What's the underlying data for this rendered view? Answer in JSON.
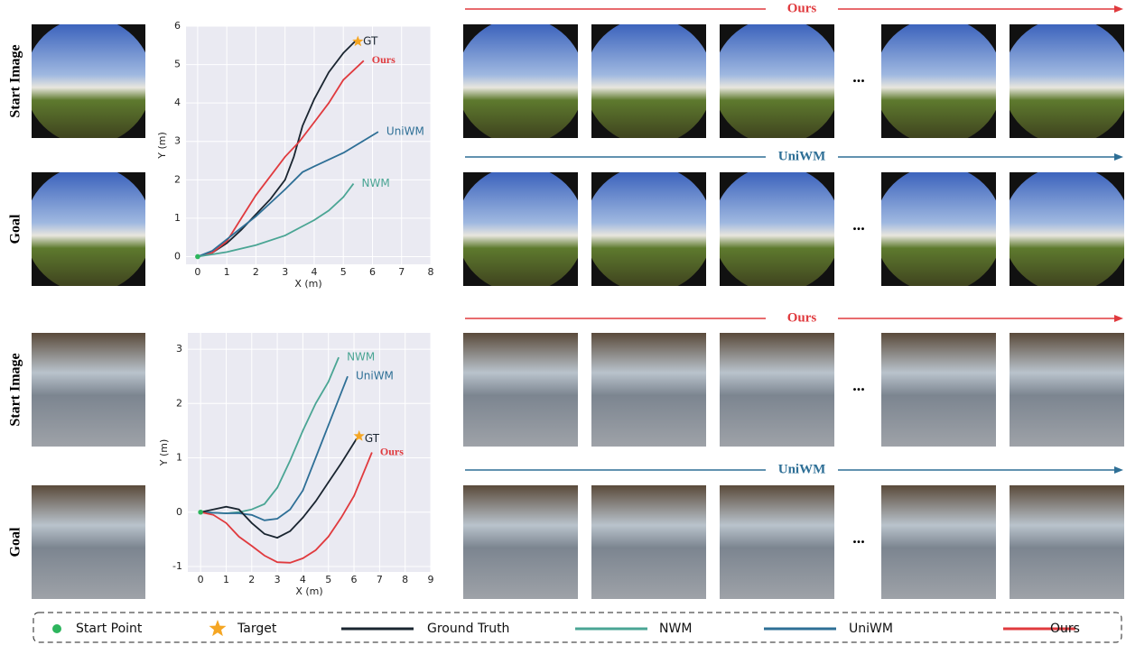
{
  "row_labels": [
    "Start Image",
    "Goal",
    "Start Image",
    "Goal"
  ],
  "sequence_labels": [
    {
      "text": "Ours",
      "color": "#e03a3e"
    },
    {
      "text": "UniWM",
      "color": "#2e6f96"
    },
    {
      "text": "Ours",
      "color": "#e03a3e"
    },
    {
      "text": "UniWM",
      "color": "#2e6f96"
    }
  ],
  "ellipsis": "...",
  "chart_data": [
    {
      "type": "line",
      "xlabel": "X (m)",
      "ylabel": "Y (m)",
      "xlim": [
        -0.4,
        8
      ],
      "ylim": [
        -0.2,
        6
      ],
      "xticks": [
        0,
        1,
        2,
        3,
        4,
        5,
        6,
        7,
        8
      ],
      "yticks": [
        0,
        1,
        2,
        3,
        4,
        5,
        6
      ],
      "grid": true,
      "start": {
        "x": 0,
        "y": 0,
        "color": "#2db55d"
      },
      "target": {
        "x": 5.5,
        "y": 5.6,
        "color": "#f5a623"
      },
      "series": [
        {
          "name": "GT",
          "color": "#1a2530",
          "x": [
            0,
            0.5,
            1,
            1.5,
            2,
            2.5,
            3,
            3.3,
            3.6,
            4,
            4.5,
            5,
            5.4
          ],
          "values": [
            0,
            0.1,
            0.35,
            0.7,
            1.1,
            1.5,
            2.0,
            2.6,
            3.4,
            4.1,
            4.8,
            5.3,
            5.6
          ]
        },
        {
          "name": "Ours",
          "color": "#e03a3e",
          "x": [
            0,
            0.5,
            1,
            1.5,
            2,
            2.5,
            3,
            3.5,
            4,
            4.5,
            5,
            5.7
          ],
          "values": [
            0,
            0.1,
            0.4,
            1.0,
            1.6,
            2.1,
            2.6,
            3.0,
            3.5,
            4.0,
            4.6,
            5.1
          ]
        },
        {
          "name": "UniWM",
          "color": "#2e6f96",
          "x": [
            0,
            0.5,
            1,
            1.5,
            2,
            2.5,
            3,
            3.6,
            4,
            5,
            6.2
          ],
          "values": [
            0,
            0.15,
            0.45,
            0.75,
            1.05,
            1.4,
            1.75,
            2.2,
            2.35,
            2.7,
            3.25
          ]
        },
        {
          "name": "NWM",
          "color": "#4aa594",
          "x": [
            0,
            1,
            2,
            3,
            3.5,
            4,
            4.5,
            5,
            5.35
          ],
          "values": [
            0,
            0.12,
            0.3,
            0.55,
            0.75,
            0.95,
            1.2,
            1.55,
            1.9
          ]
        }
      ]
    },
    {
      "type": "line",
      "xlabel": "X (m)",
      "ylabel": "Y (m)",
      "xlim": [
        -0.5,
        9
      ],
      "ylim": [
        -1.1,
        3.3
      ],
      "xticks": [
        0,
        1,
        2,
        3,
        4,
        5,
        6,
        7,
        8,
        9
      ],
      "yticks": [
        -1,
        0,
        1,
        2,
        3
      ],
      "grid": true,
      "start": {
        "x": 0,
        "y": 0,
        "color": "#2db55d"
      },
      "target": {
        "x": 6.2,
        "y": 1.4,
        "color": "#f5a623"
      },
      "series": [
        {
          "name": "NWM",
          "color": "#4aa594",
          "x": [
            0,
            1,
            1.5,
            2,
            2.5,
            3,
            3.5,
            4,
            4.5,
            5,
            5.4
          ],
          "values": [
            0,
            -0.02,
            0,
            0.05,
            0.15,
            0.45,
            0.95,
            1.5,
            2.0,
            2.4,
            2.85
          ]
        },
        {
          "name": "UniWM",
          "color": "#2e6f96",
          "x": [
            0,
            1,
            1.5,
            2,
            2.5,
            3,
            3.5,
            4,
            4.5,
            5,
            5.75
          ],
          "values": [
            0,
            -0.02,
            -0.02,
            -0.05,
            -0.15,
            -0.12,
            0.05,
            0.4,
            1.0,
            1.6,
            2.5
          ]
        },
        {
          "name": "GT",
          "color": "#1a2530",
          "x": [
            0,
            0.5,
            1,
            1.5,
            2,
            2.5,
            3,
            3.5,
            4,
            4.5,
            5,
            5.5,
            6.1
          ],
          "values": [
            0,
            0.05,
            0.1,
            0.05,
            -0.2,
            -0.4,
            -0.47,
            -0.35,
            -0.1,
            0.2,
            0.55,
            0.9,
            1.35
          ]
        },
        {
          "name": "Ours",
          "color": "#e03a3e",
          "x": [
            0,
            0.5,
            1,
            1.5,
            2,
            2.5,
            3,
            3.5,
            4,
            4.5,
            5,
            5.5,
            6,
            6.7
          ],
          "values": [
            0,
            -0.05,
            -0.2,
            -0.45,
            -0.62,
            -0.8,
            -0.92,
            -0.93,
            -0.85,
            -0.7,
            -0.45,
            -0.1,
            0.3,
            1.1
          ]
        }
      ]
    }
  ],
  "legend": [
    {
      "label": "Start Point",
      "marker": "dot",
      "color": "#2db55d"
    },
    {
      "label": "Target",
      "marker": "star",
      "color": "#f5a623"
    },
    {
      "label": "Ground Truth",
      "marker": "line",
      "color": "#1a2530"
    },
    {
      "label": "NWM",
      "marker": "line",
      "color": "#4aa594"
    },
    {
      "label": "UniWM",
      "marker": "line",
      "color": "#2e6f96"
    },
    {
      "label": "Ours",
      "marker": "line",
      "color": "#e03a3e"
    }
  ]
}
